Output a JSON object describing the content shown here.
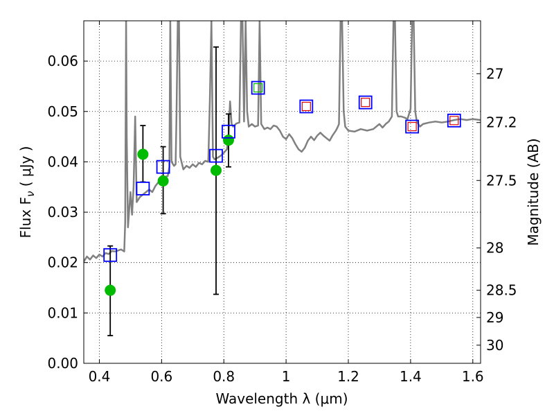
{
  "chart_data": {
    "type": "scatter",
    "title": "",
    "xlabel": "Wavelength  λ (μm)",
    "ylabel_left": "Flux  F",
    "ylabel_left_sub": "ν",
    "ylabel_left_unit": "  ( μJy )",
    "ylabel_right": "Magnitude (AB)",
    "xlim": [
      0.35,
      1.625
    ],
    "ylim": [
      0.0,
      0.068
    ],
    "grid": true,
    "x_ticks": [
      0.4,
      0.6,
      0.8,
      1.0,
      1.2,
      1.4,
      1.6
    ],
    "x_tick_labels": [
      "0.4",
      "0.6",
      "0.8",
      "1",
      "1.2",
      "1.4",
      "1.6"
    ],
    "y_ticks": [
      0.0,
      0.01,
      0.02,
      0.03,
      0.04,
      0.05,
      0.06
    ],
    "y_tick_labels": [
      "0.00",
      "0.01",
      "0.02",
      "0.03",
      "0.04",
      "0.05",
      "0.06"
    ],
    "right_ticks": [
      {
        "label": "27",
        "flux": 0.0575
      },
      {
        "label": "27.2",
        "flux": 0.0478
      },
      {
        "label": "27.5",
        "flux": 0.0363
      },
      {
        "label": "28",
        "flux": 0.0229
      },
      {
        "label": "28.5",
        "flux": 0.0145
      },
      {
        "label": "29",
        "flux": 0.0091
      },
      {
        "label": "30",
        "flux": 0.0036
      }
    ],
    "series": [
      {
        "name": "model spectrum",
        "kind": "line",
        "color": "#808080",
        "points": [
          [
            0.35,
            0.0202
          ],
          [
            0.36,
            0.0212
          ],
          [
            0.37,
            0.0206
          ],
          [
            0.38,
            0.0214
          ],
          [
            0.39,
            0.0209
          ],
          [
            0.4,
            0.0216
          ],
          [
            0.41,
            0.0212
          ],
          [
            0.42,
            0.0219
          ],
          [
            0.43,
            0.0217
          ],
          [
            0.44,
            0.0223
          ],
          [
            0.45,
            0.0222
          ],
          [
            0.46,
            0.0224
          ],
          [
            0.47,
            0.0226
          ],
          [
            0.48,
            0.0222
          ],
          [
            0.483,
            0.028
          ],
          [
            0.486,
            0.068
          ],
          [
            0.488,
            0.045
          ],
          [
            0.492,
            0.027
          ],
          [
            0.5,
            0.034
          ],
          [
            0.505,
            0.0295
          ],
          [
            0.51,
            0.035
          ],
          [
            0.515,
            0.049
          ],
          [
            0.52,
            0.032
          ],
          [
            0.53,
            0.033
          ],
          [
            0.54,
            0.0335
          ],
          [
            0.55,
            0.034
          ],
          [
            0.56,
            0.0345
          ],
          [
            0.57,
            0.034
          ],
          [
            0.58,
            0.0352
          ],
          [
            0.59,
            0.036
          ],
          [
            0.6,
            0.0372
          ],
          [
            0.61,
            0.037
          ],
          [
            0.62,
            0.0372
          ],
          [
            0.625,
            0.039
          ],
          [
            0.628,
            0.068
          ],
          [
            0.632,
            0.04
          ],
          [
            0.64,
            0.0392
          ],
          [
            0.645,
            0.0395
          ],
          [
            0.648,
            0.0495
          ],
          [
            0.652,
            0.068
          ],
          [
            0.656,
            0.068
          ],
          [
            0.66,
            0.041
          ],
          [
            0.67,
            0.0385
          ],
          [
            0.68,
            0.0392
          ],
          [
            0.69,
            0.0388
          ],
          [
            0.7,
            0.0395
          ],
          [
            0.71,
            0.039
          ],
          [
            0.72,
            0.0398
          ],
          [
            0.73,
            0.0395
          ],
          [
            0.74,
            0.0402
          ],
          [
            0.75,
            0.04
          ],
          [
            0.755,
            0.052
          ],
          [
            0.76,
            0.068
          ],
          [
            0.765,
            0.041
          ],
          [
            0.77,
            0.0405
          ],
          [
            0.78,
            0.0408
          ],
          [
            0.79,
            0.0412
          ],
          [
            0.8,
            0.0418
          ],
          [
            0.81,
            0.0425
          ],
          [
            0.815,
            0.045
          ],
          [
            0.82,
            0.052
          ],
          [
            0.825,
            0.0475
          ],
          [
            0.83,
            0.047
          ],
          [
            0.84,
            0.0476
          ],
          [
            0.85,
            0.0478
          ],
          [
            0.855,
            0.068
          ],
          [
            0.86,
            0.068
          ],
          [
            0.865,
            0.048
          ],
          [
            0.87,
            0.068
          ],
          [
            0.875,
            0.05
          ],
          [
            0.88,
            0.047
          ],
          [
            0.89,
            0.0475
          ],
          [
            0.9,
            0.047
          ],
          [
            0.91,
            0.0472
          ],
          [
            0.915,
            0.068
          ],
          [
            0.92,
            0.0475
          ],
          [
            0.93,
            0.0465
          ],
          [
            0.94,
            0.0468
          ],
          [
            0.95,
            0.0465
          ],
          [
            0.96,
            0.0472
          ],
          [
            0.97,
            0.047
          ],
          [
            0.98,
            0.0462
          ],
          [
            0.99,
            0.045
          ],
          [
            1.0,
            0.0445
          ],
          [
            1.01,
            0.0455
          ],
          [
            1.02,
            0.0447
          ],
          [
            1.03,
            0.0435
          ],
          [
            1.04,
            0.0425
          ],
          [
            1.05,
            0.042
          ],
          [
            1.06,
            0.0428
          ],
          [
            1.07,
            0.0442
          ],
          [
            1.08,
            0.045
          ],
          [
            1.09,
            0.0443
          ],
          [
            1.1,
            0.0452
          ],
          [
            1.11,
            0.0458
          ],
          [
            1.12,
            0.0452
          ],
          [
            1.13,
            0.0447
          ],
          [
            1.14,
            0.0442
          ],
          [
            1.15,
            0.0453
          ],
          [
            1.16,
            0.0462
          ],
          [
            1.165,
            0.0468
          ],
          [
            1.17,
            0.0475
          ],
          [
            1.175,
            0.068
          ],
          [
            1.18,
            0.068
          ],
          [
            1.185,
            0.05
          ],
          [
            1.19,
            0.047
          ],
          [
            1.2,
            0.0462
          ],
          [
            1.22,
            0.046
          ],
          [
            1.24,
            0.0465
          ],
          [
            1.26,
            0.0462
          ],
          [
            1.28,
            0.0465
          ],
          [
            1.3,
            0.0475
          ],
          [
            1.31,
            0.0468
          ],
          [
            1.32,
            0.0475
          ],
          [
            1.33,
            0.048
          ],
          [
            1.34,
            0.049
          ],
          [
            1.345,
            0.068
          ],
          [
            1.35,
            0.068
          ],
          [
            1.355,
            0.05
          ],
          [
            1.36,
            0.049
          ],
          [
            1.37,
            0.049
          ],
          [
            1.38,
            0.0488
          ],
          [
            1.39,
            0.0485
          ],
          [
            1.4,
            0.0505
          ],
          [
            1.405,
            0.068
          ],
          [
            1.41,
            0.068
          ],
          [
            1.415,
            0.05
          ],
          [
            1.42,
            0.048
          ],
          [
            1.43,
            0.047
          ],
          [
            1.44,
            0.0475
          ],
          [
            1.46,
            0.0478
          ],
          [
            1.48,
            0.048
          ],
          [
            1.5,
            0.0478
          ],
          [
            1.52,
            0.048
          ],
          [
            1.54,
            0.0483
          ],
          [
            1.56,
            0.0485
          ],
          [
            1.58,
            0.0483
          ],
          [
            1.6,
            0.0485
          ],
          [
            1.625,
            0.0483
          ]
        ]
      },
      {
        "name": "observed photometry",
        "kind": "points",
        "marker": "circle",
        "color": "#00bb00",
        "points": [
          {
            "x": 0.435,
            "y": 0.0145,
            "err_low": 0.0055,
            "err_high": 0.0233
          },
          {
            "x": 0.54,
            "y": 0.0415,
            "err_low": 0.036,
            "err_high": 0.0472
          },
          {
            "x": 0.605,
            "y": 0.0362,
            "err_low": 0.0297,
            "err_high": 0.043
          },
          {
            "x": 0.775,
            "y": 0.0383,
            "err_low": 0.0137,
            "err_high": 0.0628
          },
          {
            "x": 0.815,
            "y": 0.0443,
            "err_low": 0.039,
            "err_high": 0.0495
          }
        ]
      },
      {
        "name": "model photometry",
        "kind": "points",
        "marker": "square-open",
        "color": "#0000ff",
        "points": [
          {
            "x": 0.435,
            "y": 0.0215
          },
          {
            "x": 0.54,
            "y": 0.0347
          },
          {
            "x": 0.605,
            "y": 0.039
          },
          {
            "x": 0.775,
            "y": 0.0412
          },
          {
            "x": 0.815,
            "y": 0.046
          },
          {
            "x": 0.91,
            "y": 0.0547
          },
          {
            "x": 1.065,
            "y": 0.051
          },
          {
            "x": 1.255,
            "y": 0.0518
          },
          {
            "x": 1.405,
            "y": 0.047
          },
          {
            "x": 1.54,
            "y": 0.0482
          }
        ]
      },
      {
        "name": "secondary markers",
        "kind": "points",
        "marker": "square-small",
        "points": [
          {
            "x": 0.91,
            "y": 0.0547,
            "color": "#00bb00"
          },
          {
            "x": 1.065,
            "y": 0.051,
            "color": "#dd0000"
          },
          {
            "x": 1.255,
            "y": 0.0518,
            "color": "#dd0000"
          },
          {
            "x": 1.405,
            "y": 0.047,
            "color": "#dd0000"
          },
          {
            "x": 1.54,
            "y": 0.0482,
            "color": "#dd0000"
          }
        ]
      }
    ]
  }
}
